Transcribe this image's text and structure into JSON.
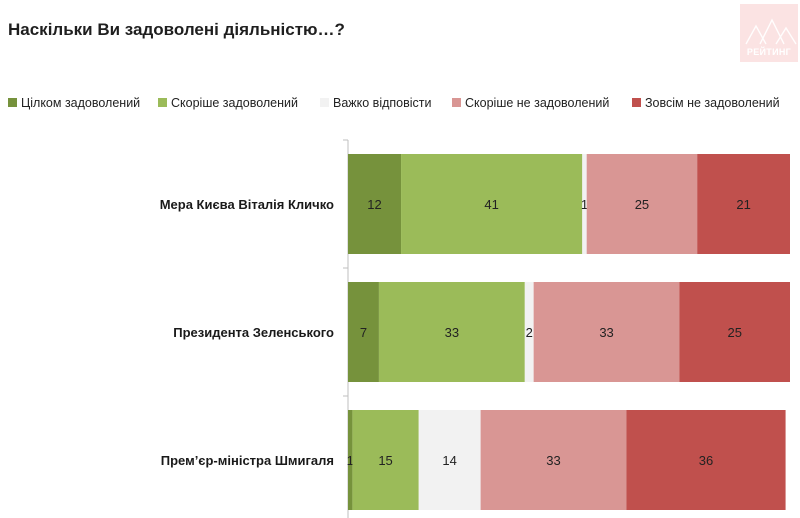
{
  "chart_data": {
    "type": "bar",
    "orientation": "horizontal",
    "stacked": true,
    "title": "Наскільки Ви задоволені діяльністю…?",
    "categories": [
      "Мера Києва Віталія Кличко",
      "Президента Зеленського",
      "Прем’єр-міністра Шмигаля"
    ],
    "series": [
      {
        "name": "Цілком задоволений",
        "color": "#76923c",
        "values": [
          12,
          7,
          1
        ]
      },
      {
        "name": "Скоріше задоволений",
        "color": "#9bbb59",
        "values": [
          41,
          33,
          15
        ]
      },
      {
        "name": "Важко відповісти",
        "color": "#f2f2f2",
        "values": [
          1,
          2,
          14
        ]
      },
      {
        "name": "Скоріше не задоволений",
        "color": "#d99694",
        "values": [
          25,
          33,
          33
        ]
      },
      {
        "name": "Зовсім не задоволений",
        "color": "#c0504d",
        "values": [
          21,
          25,
          36
        ]
      }
    ],
    "xlim": [
      0,
      100
    ],
    "legend_position": "top",
    "grid": false
  },
  "logo": {
    "label": "РЕЙТИНГ",
    "color": "#fbe3e3"
  }
}
